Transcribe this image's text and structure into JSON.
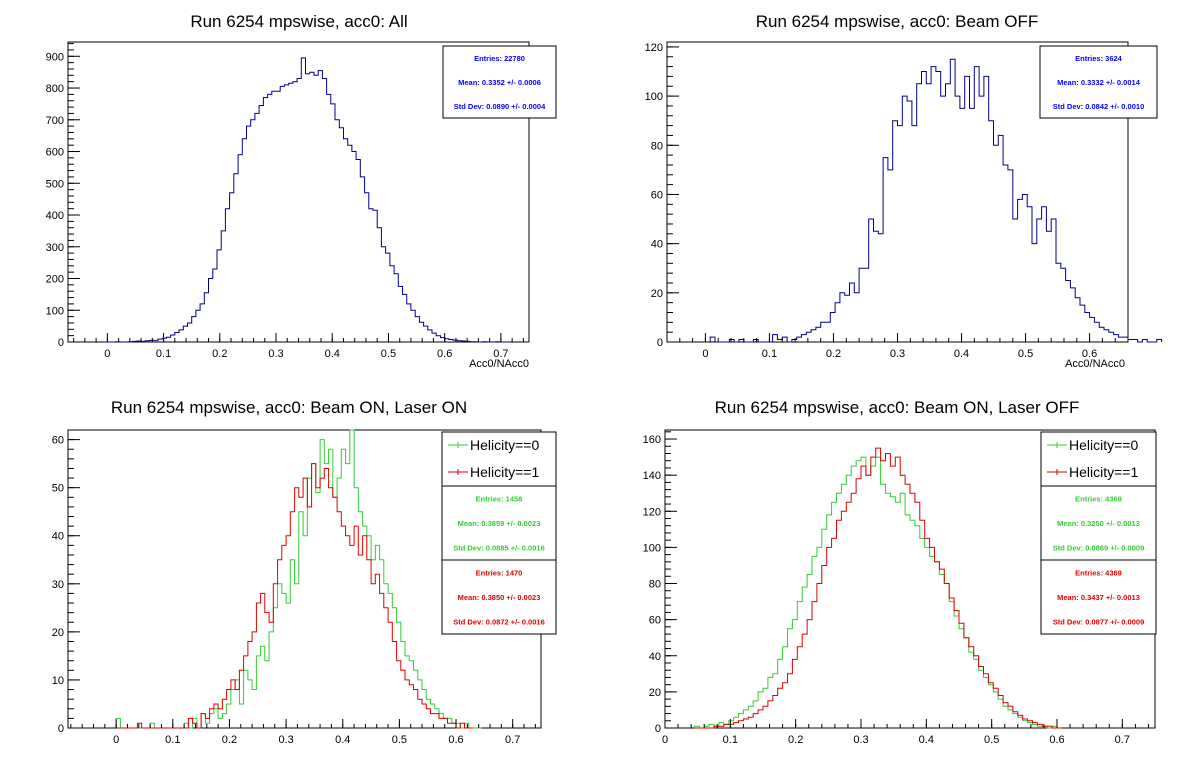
{
  "chart_data": [
    {
      "type": "histogram",
      "title": "Run 6254 mpswise, acc0: All",
      "xlabel": "Acc0/NAcc0",
      "ylabel": "",
      "xlim": [
        -0.07,
        0.75
      ],
      "ylim": [
        0,
        945
      ],
      "xticks": [
        "0",
        "0.1",
        "0.2",
        "0.3",
        "0.4",
        "0.5",
        "0.6",
        "0.7"
      ],
      "yticks": [
        "0",
        "100",
        "200",
        "300",
        "400",
        "500",
        "600",
        "700",
        "800",
        "900"
      ],
      "bin_width": 0.0075,
      "series": [
        {
          "color": "#00008b",
          "x_start": -0.0075,
          "values": [
            0,
            0,
            0,
            1,
            0,
            0,
            1,
            2,
            3,
            2,
            4,
            5,
            5,
            9,
            12,
            15,
            22,
            30,
            38,
            50,
            60,
            80,
            100,
            120,
            155,
            200,
            230,
            290,
            350,
            420,
            470,
            530,
            590,
            640,
            680,
            700,
            720,
            745,
            770,
            780,
            790,
            790,
            805,
            810,
            815,
            820,
            830,
            895,
            845,
            850,
            840,
            855,
            830,
            780,
            750,
            700,
            675,
            640,
            620,
            600,
            575,
            520,
            470,
            420,
            415,
            360,
            300,
            280,
            240,
            215,
            175,
            150,
            120,
            100,
            80,
            62,
            50,
            38,
            28,
            20,
            14,
            10,
            8,
            6,
            4,
            3,
            2,
            1,
            1,
            0,
            1,
            0,
            0,
            1,
            0,
            0
          ]
        }
      ],
      "stats": [
        {
          "color": "#0000ff",
          "entries": "Entries: 22780",
          "mean": "Mean: 0.3352 +/- 0.0006",
          "std": "Std Dev: 0.0890 +/- 0.0004"
        }
      ],
      "legend": []
    },
    {
      "type": "histogram",
      "title": "Run 6254 mpswise, acc0: Beam OFF",
      "xlabel": "Acc0/NAcc0",
      "ylabel": "",
      "xlim": [
        -0.06,
        0.66
      ],
      "ylim": [
        0,
        122
      ],
      "xticks": [
        "0",
        "0.1",
        "0.2",
        "0.3",
        "0.4",
        "0.5",
        "0.6"
      ],
      "yticks": [
        "0",
        "20",
        "40",
        "60",
        "80",
        "100",
        "120"
      ],
      "bin_width": 0.0075,
      "series": [
        {
          "color": "#00008b",
          "x_start": 0.0075,
          "values": [
            2,
            0,
            0,
            0,
            1,
            0,
            1,
            0,
            0,
            1,
            0,
            0,
            0,
            3,
            1,
            2,
            0,
            1,
            2,
            3,
            4,
            5,
            6,
            8,
            8,
            12,
            16,
            20,
            19,
            24,
            20,
            30,
            30,
            50,
            45,
            44,
            75,
            70,
            90,
            88,
            100,
            98,
            88,
            105,
            110,
            105,
            112,
            110,
            100,
            105,
            115,
            100,
            95,
            108,
            95,
            112,
            100,
            108,
            90,
            80,
            84,
            72,
            70,
            50,
            58,
            60,
            55,
            40,
            50,
            55,
            45,
            50,
            32,
            30,
            25,
            22,
            18,
            15,
            12,
            10,
            8,
            6,
            5,
            4,
            3,
            2,
            2,
            1,
            1,
            0,
            1,
            0,
            0,
            1
          ]
        }
      ],
      "stats": [
        {
          "color": "#0000ff",
          "entries": "Entries: 3624",
          "mean": "Mean: 0.3332 +/- 0.0014",
          "std": "Std Dev: 0.0842 +/- 0.0010"
        }
      ],
      "legend": []
    },
    {
      "type": "histogram",
      "title": "Run 6254 mpswise, acc0: Beam ON, Laser ON",
      "xlabel": "",
      "ylabel": "",
      "xlim": [
        -0.085,
        0.75
      ],
      "ylim": [
        0,
        62
      ],
      "xticks": [
        "0",
        "0.1",
        "0.2",
        "0.3",
        "0.4",
        "0.5",
        "0.6",
        "0.7"
      ],
      "yticks": [
        "0",
        "10",
        "20",
        "30",
        "40",
        "50",
        "60"
      ],
      "bin_width": 0.0075,
      "series": [
        {
          "name": "Helicity==0",
          "color": "#33cc33",
          "x_start": 0.0,
          "values": [
            2,
            0,
            0,
            0,
            0,
            0,
            0,
            0,
            1,
            0,
            0,
            0,
            0,
            0,
            0,
            0,
            1,
            0,
            2,
            0,
            3,
            1,
            3,
            4,
            2,
            3,
            5,
            8,
            10,
            5,
            12,
            10,
            8,
            15,
            17,
            14,
            20,
            25,
            30,
            28,
            26,
            35,
            30,
            45,
            40,
            52,
            55,
            49,
            60,
            55,
            58,
            48,
            52,
            58,
            55,
            62,
            50,
            45,
            42,
            40,
            35,
            38,
            35,
            30,
            28,
            25,
            22,
            18,
            15,
            14,
            12,
            10,
            8,
            6,
            5,
            4,
            3,
            2,
            2,
            1,
            1,
            0,
            1,
            0,
            0,
            0
          ]
        },
        {
          "name": "Helicity==1",
          "color": "#dd0000",
          "x_start": 0.0,
          "values": [
            0,
            0,
            0,
            0,
            0,
            1,
            0,
            0,
            0,
            0,
            0,
            0,
            0,
            0,
            0,
            0,
            0,
            2,
            1,
            0,
            3,
            2,
            4,
            5,
            4,
            6,
            8,
            10,
            8,
            12,
            15,
            18,
            20,
            26,
            28,
            24,
            22,
            30,
            35,
            38,
            40,
            45,
            50,
            48,
            52,
            46,
            55,
            50,
            52,
            54,
            50,
            48,
            45,
            42,
            40,
            38,
            42,
            36,
            40,
            35,
            30,
            32,
            28,
            25,
            22,
            18,
            14,
            12,
            10,
            9,
            8,
            6,
            5,
            4,
            3,
            3,
            2,
            2,
            1,
            1,
            0,
            1,
            0,
            0
          ]
        }
      ],
      "stats": [
        {
          "color": "#33cc33",
          "entries": "Entries: 1458",
          "mean": "Mean: 0.3859 +/- 0.0023",
          "std": "Std Dev: 0.0885 +/- 0.0016"
        },
        {
          "color": "#dd0000",
          "entries": "Entries: 1470",
          "mean": "Mean: 0.3850 +/- 0.0023",
          "std": "Std Dev: 0.0872 +/- 0.0016"
        }
      ],
      "legend": [
        "Helicity==0",
        "Helicity==1"
      ]
    },
    {
      "type": "histogram",
      "title": "Run 6254 mpswise, acc0: Beam ON, Laser OFF",
      "xlabel": "",
      "ylabel": "",
      "xlim": [
        0,
        0.75
      ],
      "ylim": [
        0,
        165
      ],
      "xticks": [
        "0",
        "0.1",
        "0.2",
        "0.3",
        "0.4",
        "0.5",
        "0.6",
        "0.7"
      ],
      "yticks": [
        "0",
        "20",
        "40",
        "60",
        "80",
        "100",
        "120",
        "140",
        "160"
      ],
      "bin_width": 0.0075,
      "series": [
        {
          "name": "Helicity==0",
          "color": "#33cc33",
          "x_start": 0.045,
          "values": [
            1,
            0,
            1,
            2,
            1,
            3,
            2,
            4,
            6,
            8,
            10,
            12,
            15,
            20,
            22,
            28,
            30,
            38,
            45,
            55,
            60,
            70,
            78,
            85,
            95,
            100,
            110,
            118,
            125,
            130,
            135,
            140,
            145,
            148,
            150,
            140,
            145,
            150,
            135,
            130,
            128,
            125,
            130,
            118,
            115,
            112,
            105,
            100,
            95,
            92,
            85,
            80,
            70,
            62,
            55,
            50,
            42,
            38,
            32,
            28,
            24,
            20,
            16,
            12,
            10,
            8,
            6,
            4,
            3,
            2,
            1,
            1,
            0,
            1
          ]
        },
        {
          "name": "Helicity==1",
          "color": "#dd0000",
          "x_start": 0.045,
          "values": [
            0,
            0,
            0,
            0,
            1,
            1,
            2,
            2,
            3,
            4,
            5,
            6,
            8,
            10,
            12,
            15,
            18,
            22,
            25,
            30,
            38,
            45,
            52,
            60,
            70,
            80,
            90,
            100,
            105,
            115,
            120,
            125,
            130,
            138,
            145,
            140,
            150,
            155,
            148,
            152,
            145,
            150,
            140,
            135,
            130,
            125,
            115,
            105,
            100,
            92,
            88,
            80,
            72,
            65,
            58,
            50,
            45,
            40,
            34,
            30,
            25,
            22,
            18,
            14,
            12,
            9,
            7,
            5,
            4,
            3,
            2,
            1,
            1,
            0,
            0
          ]
        }
      ],
      "stats": [
        {
          "color": "#33cc33",
          "entries": "Entries: 4369",
          "mean": "Mean: 0.3250 +/- 0.0013",
          "std": "Std Dev: 0.0869 +/- 0.0009"
        },
        {
          "color": "#dd0000",
          "entries": "Entries: 4369",
          "mean": "Mean: 0.3437 +/- 0.0013",
          "std": "Std Dev: 0.0877 +/- 0.0009"
        }
      ],
      "legend": [
        "Helicity==0",
        "Helicity==1"
      ]
    }
  ]
}
